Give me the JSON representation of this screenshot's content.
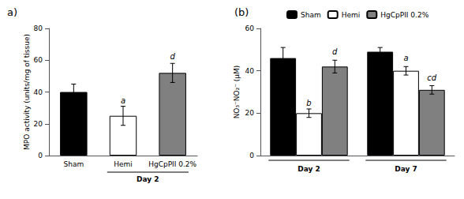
{
  "chart_data": [
    {
      "type": "bar",
      "title": "a)",
      "ylabel": "MPO activity (units/mg of tissue)",
      "categories": [
        "Sham",
        "Hemi",
        "HgCpPII 0.2%"
      ],
      "values": [
        40,
        25,
        52
      ],
      "errors": [
        5,
        6,
        6
      ],
      "colors": [
        "#000000",
        "#ffffff",
        "#808080"
      ],
      "letters": [
        null,
        "a",
        "d"
      ],
      "letter_y": [
        null,
        32,
        60
      ],
      "group_labels": [
        {
          "label": "Day 2",
          "categories": [
            "Hemi",
            "HgCpPII 0.2%"
          ]
        }
      ],
      "ylim": [
        0,
        80
      ],
      "yticks": [
        0,
        20,
        40,
        60,
        80
      ],
      "grid": false
    },
    {
      "type": "bar",
      "title": "(b)",
      "ylabel": "NO₃⁻NO₂⁻ (μM)",
      "categories": [
        "Day 2",
        "Day 7"
      ],
      "series": [
        {
          "name": "Sham",
          "color": "#000000",
          "values": [
            46,
            49
          ],
          "errors": [
            5,
            2
          ],
          "letters": [
            null,
            null
          ],
          "letter_y": [
            null,
            null
          ]
        },
        {
          "name": "Hemi",
          "color": "#ffffff",
          "values": [
            20,
            40
          ],
          "errors": [
            2,
            2
          ],
          "letters": [
            "b",
            "a"
          ],
          "letter_y": [
            23,
            44
          ]
        },
        {
          "name": "HgCpPII 0.2%",
          "color": "#808080",
          "values": [
            42,
            31
          ],
          "errors": [
            3,
            2
          ],
          "letters": [
            "d",
            "cd"
          ],
          "letter_y": [
            47,
            35
          ]
        }
      ],
      "ylim": [
        0,
        60
      ],
      "yticks": [
        0,
        20,
        40,
        60
      ],
      "grid": false,
      "legend": "upper left"
    }
  ]
}
